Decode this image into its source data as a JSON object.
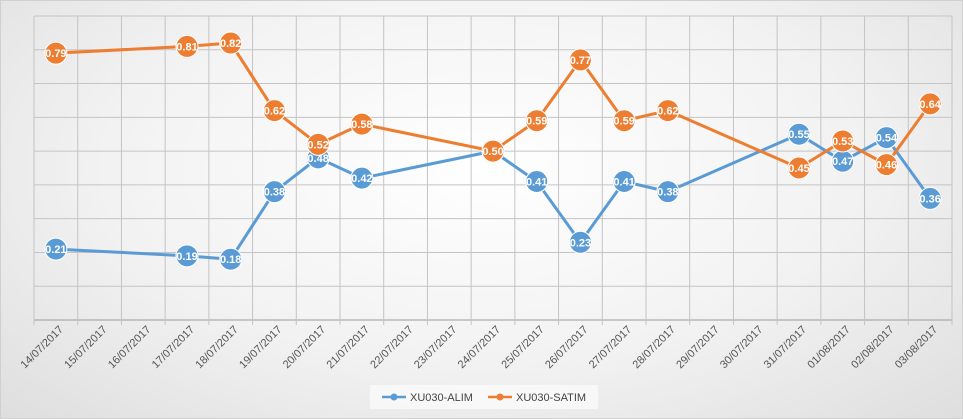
{
  "chart_data": {
    "type": "line",
    "title": "",
    "xlabel": "",
    "ylabel": "",
    "ylim": [
      0,
      0.9
    ],
    "grid": true,
    "legend_position": "bottom",
    "x": [
      "14/07/2017",
      "15/07/2017",
      "16/07/2017",
      "17/07/2017",
      "18/07/2017",
      "19/07/2017",
      "20/07/2017",
      "21/07/2017",
      "22/07/2017",
      "23/07/2017",
      "24/07/2017",
      "25/07/2017",
      "26/07/2017",
      "27/07/2017",
      "28/07/2017",
      "29/07/2017",
      "30/07/2017",
      "31/07/2017",
      "01/08/2017",
      "02/08/2017",
      "03/08/2017"
    ],
    "series": [
      {
        "name": "XU030-ALIM",
        "color": "#5b9bd5",
        "values": [
          0.21,
          null,
          null,
          0.19,
          0.18,
          0.38,
          0.48,
          0.42,
          null,
          null,
          0.5,
          0.41,
          0.23,
          0.41,
          0.38,
          null,
          null,
          0.55,
          0.47,
          0.54,
          0.36
        ],
        "labels": [
          "0.21",
          null,
          null,
          "0.19",
          "0.18",
          "0.38",
          "0.48",
          "0.42",
          null,
          null,
          "0.50",
          "0.41",
          "0.23",
          "0.41",
          "0.38",
          null,
          null,
          "0.55",
          "0.47",
          "0.54",
          "0.36"
        ]
      },
      {
        "name": "XU030-SATIM",
        "color": "#ed7d31",
        "values": [
          0.79,
          null,
          null,
          0.81,
          0.82,
          0.62,
          0.52,
          0.58,
          null,
          null,
          0.5,
          0.59,
          0.77,
          0.59,
          0.62,
          null,
          null,
          0.45,
          0.53,
          0.46,
          0.64
        ],
        "labels": [
          "0.79",
          null,
          null,
          "0.81",
          "0.82",
          "0.62",
          "0.52",
          "0.58",
          null,
          null,
          "0.50",
          "0.59",
          "0.77",
          "0.59",
          "0.62",
          null,
          null,
          "0.45",
          "0.53",
          "0.46",
          "0.64"
        ]
      }
    ]
  }
}
